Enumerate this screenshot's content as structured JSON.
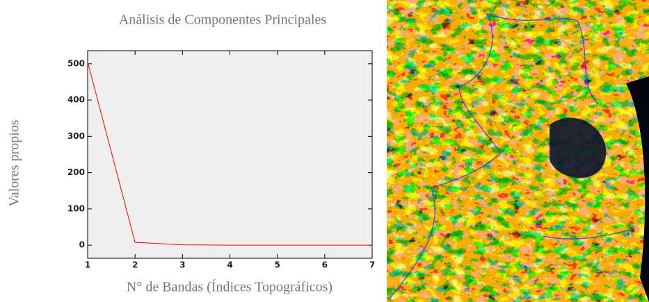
{
  "chart_data": {
    "type": "line",
    "title": "Análisis de Componentes Principales",
    "y_label": "Valores propios",
    "x_label": "N° de Bandas (Índices Topográficos)",
    "x": [
      1,
      2,
      3,
      4,
      5,
      6,
      7
    ],
    "series": [
      {
        "color": "#ff0000",
        "values": [
          505,
          8,
          1,
          0,
          0,
          0,
          0
        ]
      }
    ],
    "xlim": [
      1,
      7
    ],
    "xticks": [
      1,
      2,
      3,
      4,
      5,
      6,
      7
    ],
    "ylim": [
      -36,
      536
    ],
    "yticks": [
      0,
      100,
      200,
      300,
      400,
      500
    ],
    "grid": false
  }
}
